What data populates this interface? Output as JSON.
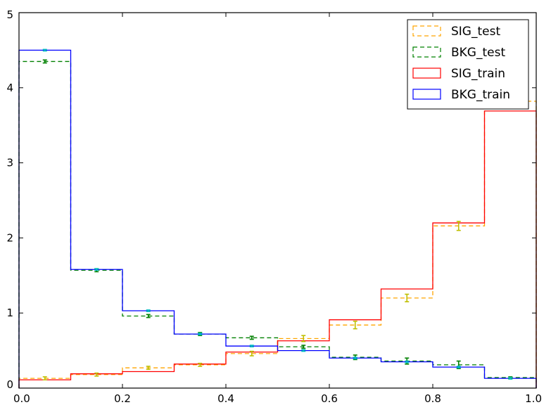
{
  "chart_data": {
    "type": "histogram",
    "title": "",
    "xlabel": "",
    "ylabel": "",
    "xlim": [
      0.0,
      1.0
    ],
    "ylim": [
      0,
      5
    ],
    "grid": false,
    "legend_position": "top-right",
    "bin_edges": [
      0.0,
      0.1,
      0.2,
      0.3,
      0.4,
      0.5,
      0.6,
      0.7,
      0.8,
      0.9,
      1.0
    ],
    "x_ticks": [
      "0.0",
      "0.2",
      "0.4",
      "0.6",
      "0.8",
      "1.0"
    ],
    "y_ticks": [
      "0",
      "1",
      "2",
      "3",
      "4",
      "5"
    ],
    "series": [
      {
        "name": "SIG_test",
        "style": "dashed",
        "color": "#FFA500",
        "values": [
          0.13,
          0.18,
          0.27,
          0.31,
          0.46,
          0.66,
          0.84,
          1.2,
          2.16,
          3.82
        ],
        "errors": [
          0.02,
          0.02,
          0.02,
          0.02,
          0.03,
          0.04,
          0.05,
          0.05,
          0.06,
          0.07
        ]
      },
      {
        "name": "BKG_test",
        "style": "dashed",
        "color": "#008000",
        "values": [
          4.35,
          1.57,
          0.96,
          0.72,
          0.67,
          0.55,
          0.41,
          0.36,
          0.31,
          0.14
        ],
        "errors": [
          0.02,
          0.02,
          0.02,
          0.02,
          0.02,
          0.02,
          0.03,
          0.04,
          0.05,
          0.01
        ]
      },
      {
        "name": "SIG_train",
        "style": "solid",
        "color": "#FF0000",
        "values": [
          0.11,
          0.19,
          0.22,
          0.32,
          0.48,
          0.63,
          0.91,
          1.32,
          2.2,
          3.69
        ]
      },
      {
        "name": "BKG_train",
        "style": "solid",
        "color": "#0000FF",
        "values": [
          4.5,
          1.58,
          1.03,
          0.72,
          0.56,
          0.5,
          0.4,
          0.35,
          0.28,
          0.13
        ]
      }
    ],
    "error_markers": [
      {
        "series": "SIG_test",
        "color": "#BFBF00"
      },
      {
        "series": "BKG_test",
        "color": "#008000"
      },
      {
        "series": "BKG_train",
        "color": "#00BFBF"
      }
    ]
  }
}
